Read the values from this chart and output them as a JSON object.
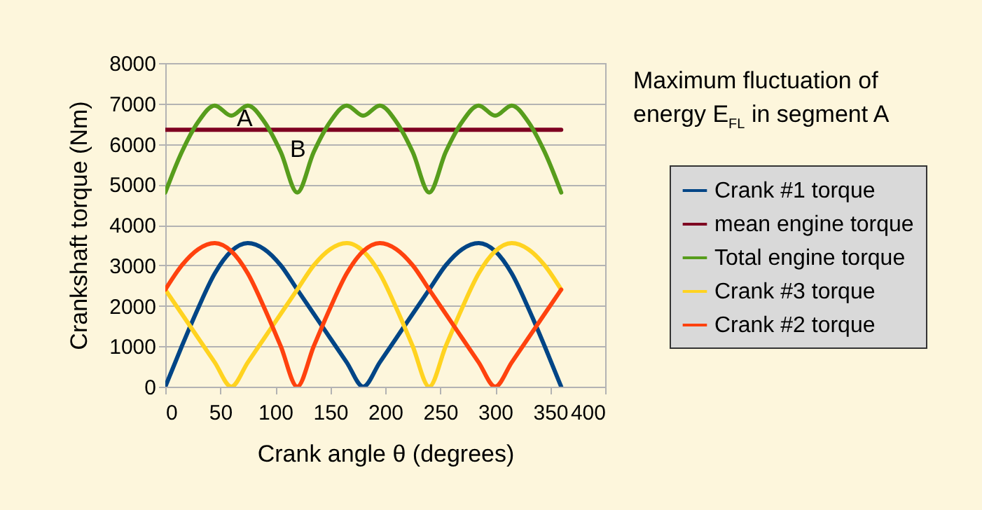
{
  "chart_data": {
    "type": "line",
    "title": "Maximum fluctuation of energy E$_{FL}$ in segment A",
    "xlabel": "Crank angle θ (degrees)",
    "ylabel": "Crankshaft torque (Nm)",
    "x": [
      0,
      15,
      30,
      45,
      60,
      75,
      90,
      105,
      120,
      135,
      150,
      165,
      180,
      195,
      210,
      225,
      240,
      255,
      270,
      285,
      300,
      315,
      330,
      345,
      360
    ],
    "series": [
      {
        "name": "Crank #1 torque",
        "color": "#004586",
        "values": [
          0,
          1000,
          1950,
          2800,
          3350,
          3550,
          3400,
          3000,
          2400,
          1800,
          1200,
          600,
          0,
          600,
          1200,
          1800,
          2400,
          3000,
          3400,
          3550,
          3350,
          2800,
          1950,
          1000,
          0
        ]
      },
      {
        "name": "mean engine torque",
        "color": "#7e0021",
        "x": [
          0,
          360
        ],
        "values": [
          6350,
          6350
        ]
      },
      {
        "name": "Total engine torque",
        "color": "#579d1c",
        "values": [
          4800,
          5800,
          6550,
          6950,
          6700,
          6950,
          6550,
          5800,
          4800,
          5800,
          6550,
          6950,
          6700,
          6950,
          6550,
          5800,
          4800,
          5800,
          6550,
          6950,
          6700,
          6950,
          6550,
          5800,
          4800
        ]
      },
      {
        "name": "Crank #3 torque",
        "color": "#ffd320",
        "values": [
          2400,
          1800,
          1200,
          600,
          0,
          600,
          1200,
          1800,
          2400,
          3000,
          3400,
          3550,
          3350,
          2800,
          1950,
          1000,
          0,
          1000,
          1950,
          2800,
          3350,
          3550,
          3400,
          3000,
          2400
        ]
      },
      {
        "name": "Crank #2 torque",
        "color": "#ff420e",
        "values": [
          2400,
          3000,
          3400,
          3550,
          3350,
          2800,
          1950,
          1000,
          0,
          1000,
          1950,
          2800,
          3350,
          3550,
          3400,
          3000,
          2400,
          1800,
          1200,
          600,
          0,
          600,
          1200,
          1800,
          2400
        ]
      }
    ],
    "annotations": [
      "A",
      "B"
    ],
    "xlim": [
      0,
      400
    ],
    "xticks": [
      0,
      50,
      100,
      150,
      200,
      250,
      300,
      350,
      400
    ],
    "ylim": [
      0,
      8000
    ],
    "yticks": [
      0,
      1000,
      2000,
      3000,
      4000,
      5000,
      6000,
      7000,
      8000
    ],
    "grid": "y",
    "legend": "right"
  }
}
